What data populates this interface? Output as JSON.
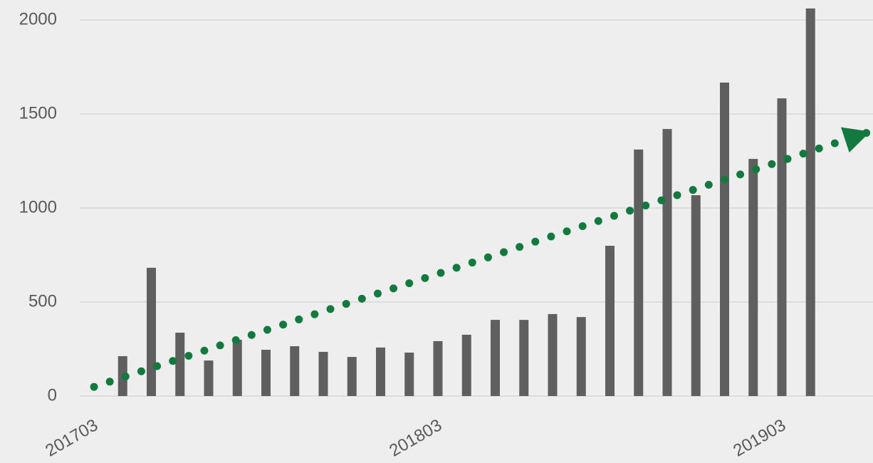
{
  "chart_data": {
    "type": "bar",
    "categories": [
      "201703",
      null,
      null,
      null,
      null,
      null,
      null,
      null,
      null,
      null,
      null,
      null,
      "201803",
      null,
      null,
      null,
      null,
      null,
      null,
      null,
      null,
      null,
      null,
      null,
      "201903",
      null,
      null,
      null
    ],
    "series": [
      {
        "type": "bar",
        "color": "#5f5f5f",
        "values": [
          null,
          212,
          682,
          337,
          189,
          299,
          246,
          265,
          235,
          208,
          258,
          231,
          292,
          326,
          405,
          405,
          436,
          420,
          799,
          1311,
          1420,
          1068,
          1667,
          1261,
          1583,
          2061,
          null,
          null
        ]
      },
      {
        "type": "line",
        "color": "#127a3e",
        "style": "dotted",
        "arrow": true,
        "values": [
          49,
          99,
          149,
          199,
          249,
          300,
          350,
          400,
          450,
          500,
          550,
          600,
          650,
          700,
          750,
          801,
          851,
          901,
          951,
          1001,
          1051,
          1101,
          1151,
          1201,
          1251,
          1302,
          1352,
          1402
        ]
      }
    ],
    "ylim": [
      0,
      2000
    ],
    "yticks": [
      0,
      500,
      1000,
      1500,
      2000
    ],
    "grid": true
  }
}
